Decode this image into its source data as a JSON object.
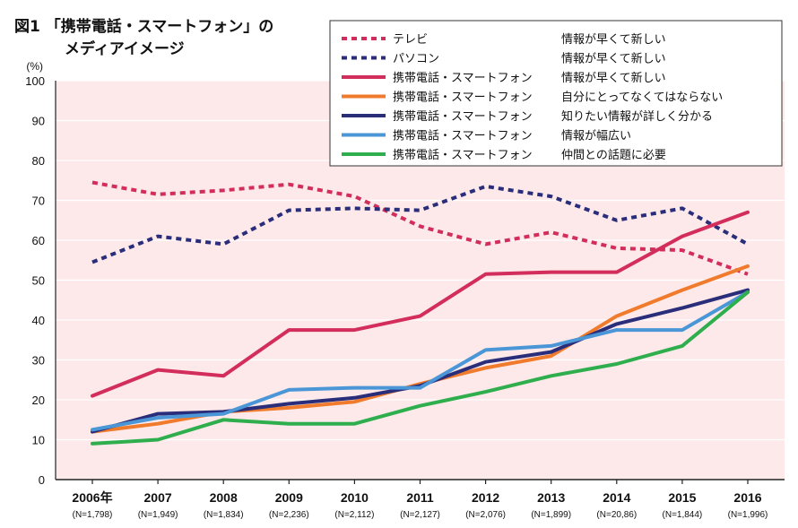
{
  "title": {
    "line1": "図1 「携帯電話・スマートフォン」の",
    "line2": "メディアイメージ"
  },
  "chart_data": {
    "type": "line",
    "ylabel": "(%)",
    "ylim": [
      0,
      100
    ],
    "yticks": [
      0,
      10,
      20,
      30,
      40,
      50,
      60,
      70,
      80,
      90,
      100
    ],
    "categories": [
      "2006年",
      "2007",
      "2008",
      "2009",
      "2010",
      "2011",
      "2012",
      "2013",
      "2014",
      "2015",
      "2016"
    ],
    "sample_sizes": [
      "(N=1,798)",
      "(N=1,949)",
      "(N=1,834)",
      "(N=2,236)",
      "(N=2,112)",
      "(N=2,127)",
      "(N=2,076)",
      "(N=1,899)",
      "(N=20,86)",
      "(N=1,844)",
      "(N=1,996)"
    ],
    "grid": "horizontal",
    "background": "#fde9e9",
    "legend_position": "top-right",
    "series": [
      {
        "name": "テレビ",
        "desc": "情報が早くて新しい",
        "color": "#d32d5c",
        "dashed": true,
        "values": [
          74.5,
          71.5,
          72.5,
          74,
          71,
          63.5,
          59,
          62,
          58,
          57.5,
          51.5
        ]
      },
      {
        "name": "パソコン",
        "desc": "情報が早くて新しい",
        "color": "#2a2e7a",
        "dashed": true,
        "values": [
          54.5,
          61,
          59,
          67.5,
          68,
          67.5,
          73.5,
          71,
          65,
          68,
          59
        ]
      },
      {
        "name": "携帯電話・スマートフォン",
        "desc": "情報が早くて新しい",
        "color": "#d32d5c",
        "dashed": false,
        "values": [
          21,
          27.5,
          26,
          37.5,
          37.5,
          41,
          51.5,
          52,
          52,
          61,
          67
        ]
      },
      {
        "name": "携帯電話・スマートフォン",
        "desc": "自分にとってなくてはならない",
        "color": "#f07b2c",
        "dashed": false,
        "values": [
          12,
          14,
          17,
          18,
          19.5,
          24,
          28,
          31,
          41,
          47.5,
          53.5
        ]
      },
      {
        "name": "携帯電話・スマートフォン",
        "desc": "知りたい情報が詳しく分かる",
        "color": "#2a2e7a",
        "dashed": false,
        "values": [
          12,
          16.5,
          17,
          19,
          20.5,
          23.5,
          29.5,
          32,
          39,
          43,
          47.5
        ]
      },
      {
        "name": "携帯電話・スマートフォン",
        "desc": "情報が幅広い",
        "color": "#4a96d6",
        "dashed": false,
        "values": [
          12.5,
          15.5,
          16.5,
          22.5,
          23,
          23,
          32.5,
          33.5,
          37.5,
          37.5,
          47
        ]
      },
      {
        "name": "携帯電話・スマートフォン",
        "desc": "仲間との話題に必要",
        "color": "#2fae4e",
        "dashed": false,
        "values": [
          9,
          10,
          15,
          14,
          14,
          18.5,
          22,
          26,
          29,
          33.5,
          47
        ]
      }
    ]
  }
}
